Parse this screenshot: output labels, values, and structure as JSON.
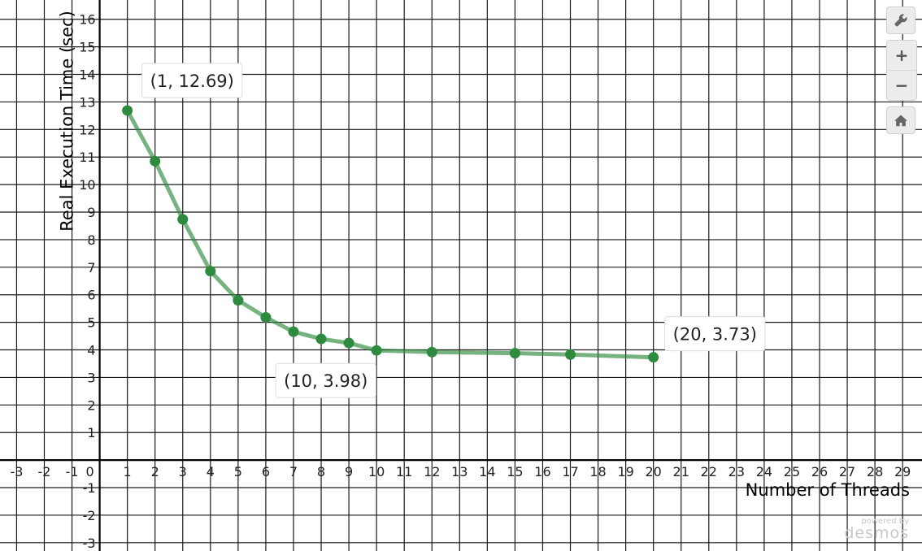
{
  "chart_data": {
    "type": "line",
    "xlabel": "Number of Threads",
    "ylabel": "Real Execution Time (sec)",
    "xlim": [
      -3.6,
      29.7
    ],
    "ylim": [
      -3.3,
      16.7
    ],
    "grid": true,
    "x_ticks": [
      -3,
      -2,
      -1,
      0,
      1,
      2,
      3,
      4,
      5,
      6,
      7,
      8,
      9,
      10,
      11,
      12,
      13,
      14,
      15,
      16,
      17,
      18,
      19,
      20,
      21,
      22,
      23,
      24,
      25,
      26,
      27,
      28,
      29
    ],
    "y_ticks": [
      -3,
      -2,
      -1,
      1,
      2,
      3,
      4,
      5,
      6,
      7,
      8,
      9,
      10,
      11,
      12,
      13,
      14,
      15,
      16
    ],
    "series": [
      {
        "color": "#2e8b3e",
        "x": [
          1,
          2,
          3,
          4,
          5,
          6,
          7,
          8,
          9,
          10,
          12,
          15,
          17,
          20
        ],
        "y": [
          12.69,
          10.85,
          8.74,
          6.86,
          5.8,
          5.18,
          4.66,
          4.4,
          4.25,
          3.98,
          3.92,
          3.88,
          3.83,
          3.73
        ]
      }
    ],
    "annotations": [
      {
        "text": "(1, 12.69)",
        "x": 1,
        "y": 12.69
      },
      {
        "text": "(10, 3.98)",
        "x": 10,
        "y": 3.98
      },
      {
        "text": "(20, 3.73)",
        "x": 20,
        "y": 3.73
      }
    ]
  },
  "controls": {
    "wrench_icon": "wrench-icon",
    "zoom_in_label": "+",
    "zoom_out_label": "−",
    "home_icon": "home-icon"
  },
  "watermark": {
    "line1": "powered by",
    "line2": "desmos"
  }
}
